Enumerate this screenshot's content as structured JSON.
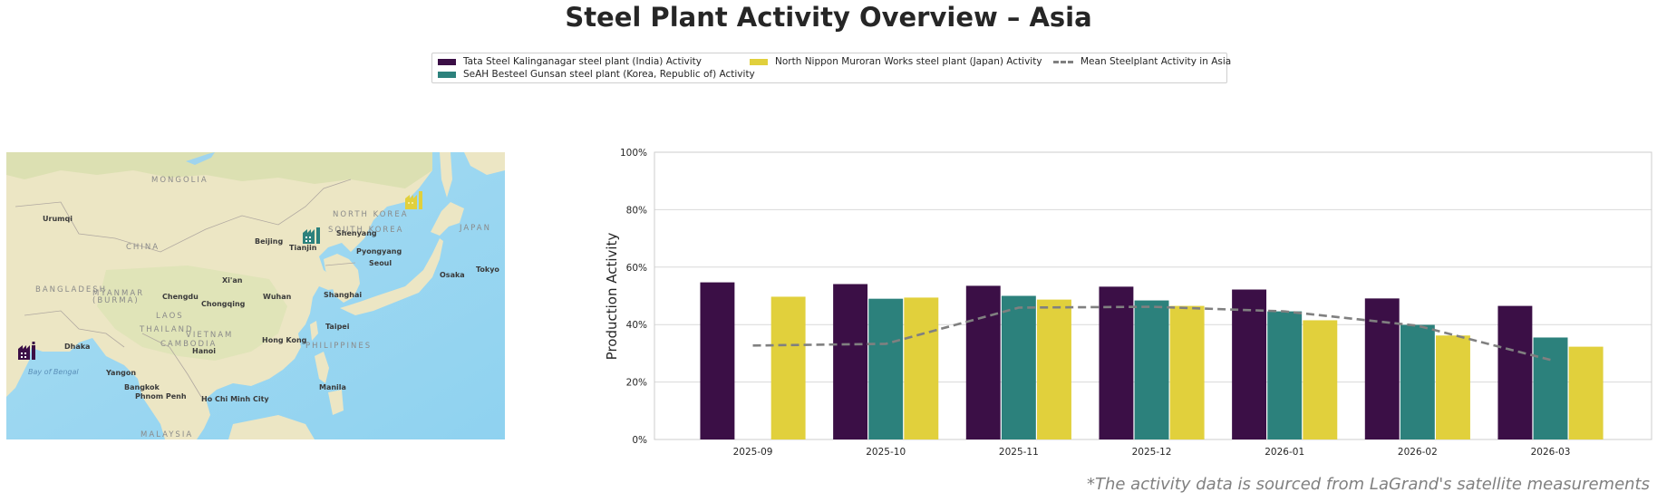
{
  "title": "Steel Plant Activity Overview – Asia",
  "footnote": "*The activity data is sourced from LaGrand's satellite measurements",
  "legend": {
    "items": [
      {
        "label": "Tata Steel Kalinganagar steel plant (India) Activity",
        "color": "#3b0f46",
        "kind": "bar"
      },
      {
        "label": "SeAH Besteel Gunsan steel plant (Korea, Republic of) Activity",
        "color": "#2c817c",
        "kind": "bar"
      },
      {
        "label": "North Nippon Muroran Works steel plant (Japan) Activity",
        "color": "#e1d03c",
        "kind": "bar"
      },
      {
        "label": "Mean Steelplant Activity in Asia",
        "color": "#808080",
        "kind": "dashed-line"
      }
    ]
  },
  "map": {
    "countries": [
      "MONGOLIA",
      "CHINA",
      "NORTH KOREA",
      "SOUTH KOREA",
      "JAPAN",
      "BANGLADESH",
      "MYANMAR",
      "(BURMA)",
      "LAOS",
      "THAILAND",
      "VIETNAM",
      "CAMBODIA",
      "PHILIPPINES",
      "MALAYSIA"
    ],
    "cities": [
      "Urumqi",
      "Beijing",
      "Tianjin",
      "Shenyang",
      "Pyongyang",
      "Seoul",
      "Osaka",
      "Tokyo",
      "Xi'an",
      "Chengdu",
      "Chongqing",
      "Wuhan",
      "Shanghai",
      "Taipei",
      "Hong Kong",
      "Hanoi",
      "Dhaka",
      "Yangon",
      "Bangkok",
      "Phnom Penh",
      "Ho Chi Minh City",
      "Manila"
    ],
    "seas": [
      "Bay of Bengal"
    ],
    "markers": [
      {
        "name": "Tata Steel Kalinganagar",
        "color": "#3b0f46",
        "icon": "factory-icon"
      },
      {
        "name": "SeAH Besteel Gunsan",
        "color": "#2c817c",
        "icon": "factory-icon"
      },
      {
        "name": "North Nippon Muroran Works",
        "color": "#e1d03c",
        "icon": "factory-icon"
      }
    ]
  },
  "chart_data": {
    "type": "bar",
    "title": "",
    "xlabel": "",
    "ylabel": "Production Activity",
    "ylim": [
      0,
      100
    ],
    "yticks": [
      "0%",
      "20%",
      "40%",
      "60%",
      "80%",
      "100%"
    ],
    "grid": true,
    "legend_position": "top-center",
    "categories": [
      "2025-09",
      "2025-10",
      "2025-11",
      "2025-12",
      "2026-01",
      "2026-02",
      "2026-03"
    ],
    "series": [
      {
        "name": "Tata Steel Kalinganagar steel plant (India) Activity",
        "color": "#3b0f46",
        "values": [
          54.7,
          54.1,
          53.5,
          53.2,
          52.2,
          49.1,
          46.5
        ]
      },
      {
        "name": "SeAH Besteel Gunsan steel plant (Korea, Republic of) Activity",
        "color": "#2c817c",
        "values": [
          null,
          49.0,
          50.0,
          48.4,
          44.6,
          39.9,
          35.5
        ]
      },
      {
        "name": "North Nippon Muroran Works steel plant (Japan) Activity",
        "color": "#e1d03c",
        "values": [
          49.7,
          49.4,
          48.7,
          46.5,
          41.5,
          36.2,
          32.3
        ]
      }
    ],
    "mean_line": {
      "name": "Mean Steelplant Activity in Asia",
      "color": "#808080",
      "style": "dashed",
      "values": [
        32.7,
        33.3,
        45.9,
        46.2,
        44.6,
        39.6,
        27.7
      ]
    }
  }
}
